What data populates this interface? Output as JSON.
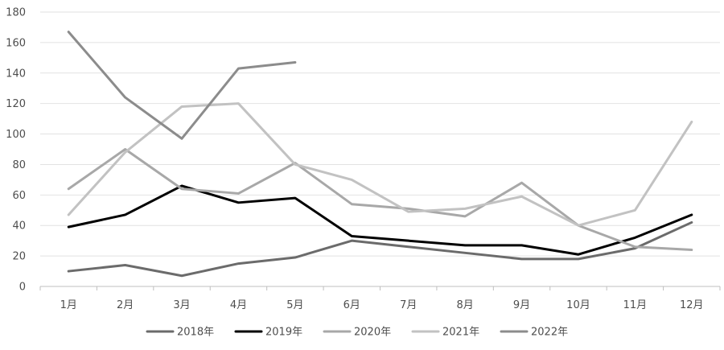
{
  "chart_data": {
    "type": "line",
    "title": "",
    "xlabel": "",
    "ylabel": "",
    "categories": [
      "1月",
      "2月",
      "3月",
      "4月",
      "5月",
      "6月",
      "7月",
      "8月",
      "9月",
      "10月",
      "11月",
      "12月"
    ],
    "ylim": [
      0,
      180
    ],
    "yticks": [
      0,
      20,
      40,
      60,
      80,
      100,
      120,
      140,
      160,
      180
    ],
    "grid": true,
    "legend": "bottom",
    "series": [
      {
        "name": "2018年",
        "color": "#6b6b6b",
        "values": [
          10,
          14,
          7,
          15,
          19,
          30,
          26,
          22,
          18,
          18,
          25,
          42
        ]
      },
      {
        "name": "2019年",
        "color": "#000000",
        "values": [
          39,
          47,
          66,
          55,
          58,
          33,
          30,
          27,
          27,
          21,
          32,
          47
        ]
      },
      {
        "name": "2020年",
        "color": "#a8a8a8",
        "values": [
          64,
          90,
          64,
          61,
          81,
          54,
          51,
          46,
          68,
          40,
          26,
          24
        ]
      },
      {
        "name": "2021年",
        "color": "#c2c2c2",
        "values": [
          47,
          88,
          118,
          120,
          80,
          70,
          49,
          51,
          59,
          40,
          50,
          108
        ]
      },
      {
        "name": "2022年",
        "color": "#8c8c8c",
        "values": [
          167,
          124,
          97,
          143,
          147,
          null,
          null,
          null,
          null,
          null,
          null,
          null
        ]
      }
    ]
  }
}
